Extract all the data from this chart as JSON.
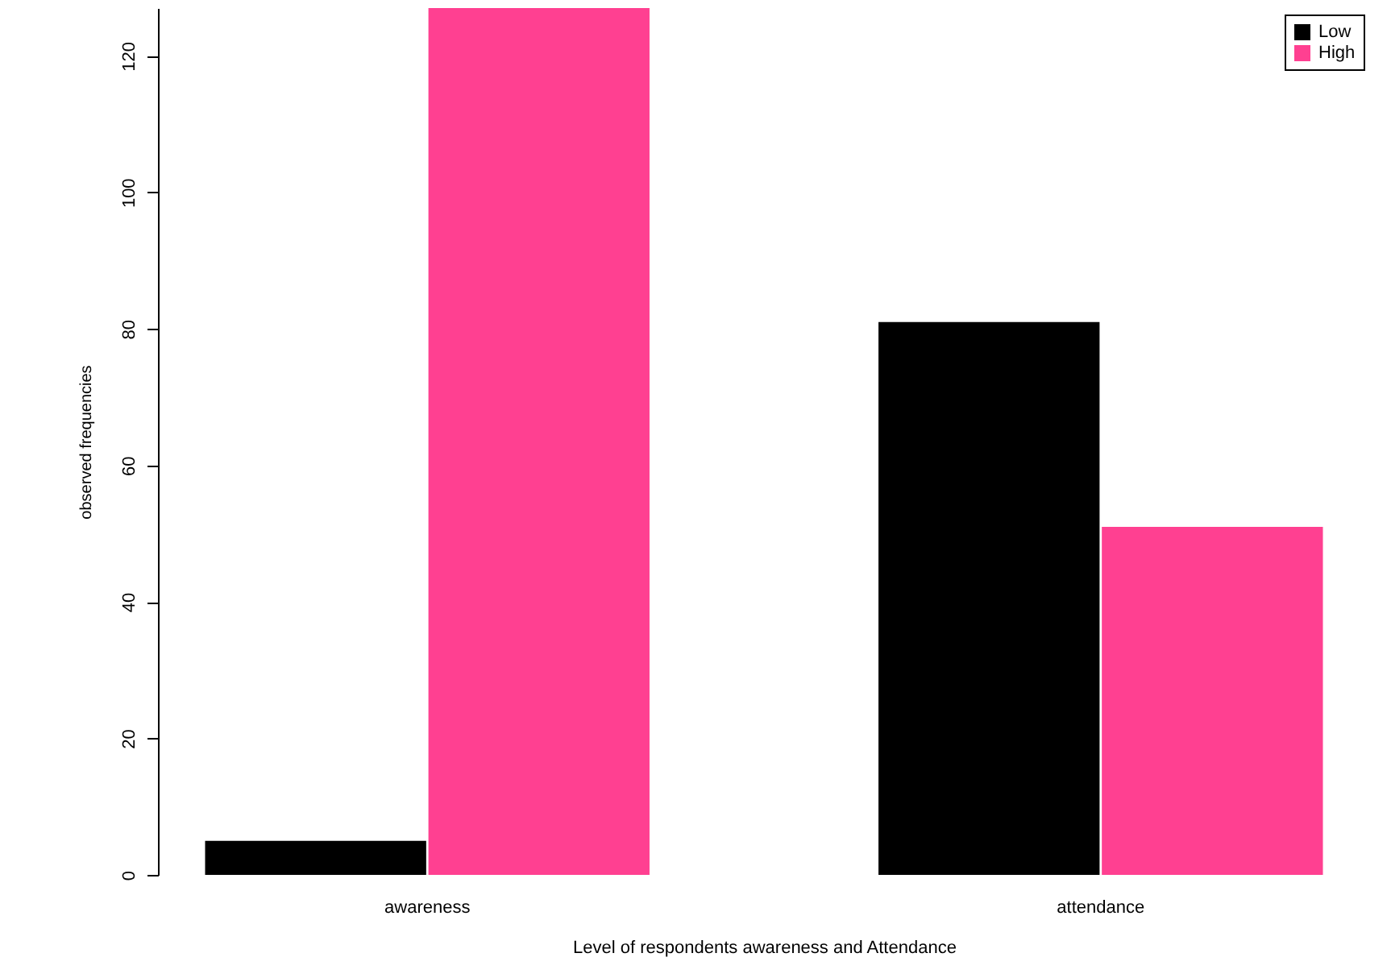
{
  "chart_data": {
    "type": "bar",
    "xlabel": "Level of respondents awareness and Attendance",
    "ylabel": "observed frequencies",
    "categories": [
      "awareness",
      "attendance"
    ],
    "series": [
      {
        "name": "Low",
        "color": "#000000",
        "values": [
          5,
          81
        ]
      },
      {
        "name": "High",
        "color": "#ff4091",
        "values": [
          127,
          51
        ]
      }
    ],
    "ylim": [
      0,
      127
    ],
    "yticks": [
      0,
      20,
      40,
      60,
      80,
      100,
      120
    ],
    "grid": false,
    "legend": "top right"
  }
}
